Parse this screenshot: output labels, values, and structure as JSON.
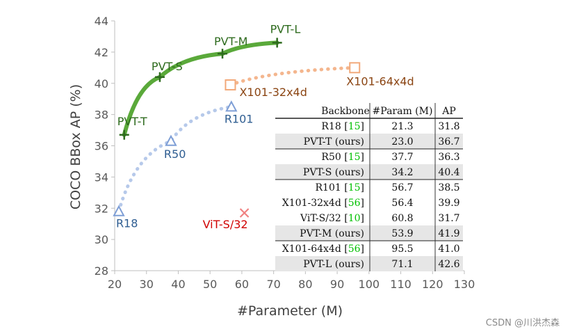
{
  "chart_data": {
    "type": "scatter",
    "xlabel": "#Parameter (M)",
    "ylabel": "COCO BBox AP (%)",
    "xlim": [
      20,
      130
    ],
    "ylim": [
      28,
      44
    ],
    "xticks": [
      "20",
      "30",
      "40",
      "50",
      "60",
      "70",
      "80",
      "90",
      "100",
      "110",
      "120",
      "130"
    ],
    "yticks": [
      "28",
      "30",
      "32",
      "34",
      "36",
      "38",
      "40",
      "42",
      "44"
    ],
    "grid": false,
    "series": [
      {
        "key": "pvt",
        "color": "#5aa93a",
        "line": "solid",
        "marker": "plus",
        "points": [
          {
            "label": "PVT-T",
            "x": 23.0,
            "y": 36.7
          },
          {
            "label": "PVT-S",
            "x": 34.2,
            "y": 40.4
          },
          {
            "label": "PVT-M",
            "x": 53.9,
            "y": 41.9
          },
          {
            "label": "PVT-L",
            "x": 71.1,
            "y": 42.6
          }
        ]
      },
      {
        "key": "resnet",
        "color": "#a9c0e6",
        "label_color": "#2e5d91",
        "line": "dotted",
        "marker": "triangle",
        "points": [
          {
            "label": "R18",
            "x": 21.3,
            "y": 31.8
          },
          {
            "label": "R50",
            "x": 37.7,
            "y": 36.3
          },
          {
            "label": "R101",
            "x": 56.7,
            "y": 38.5
          }
        ]
      },
      {
        "key": "resnext",
        "color": "#f2a97a",
        "label_color": "#8b4513",
        "line": "dotted",
        "marker": "square",
        "points": [
          {
            "label": "X101-32x4d",
            "x": 56.4,
            "y": 39.9
          },
          {
            "label": "X101-64x4d",
            "x": 95.5,
            "y": 41.0
          }
        ]
      },
      {
        "key": "vit",
        "color": "#f08080",
        "label_color": "#d00000",
        "line": "none",
        "marker": "x",
        "points": [
          {
            "label": "ViT-S/32",
            "x": 60.8,
            "y": 31.7
          }
        ]
      }
    ],
    "table": {
      "headers": [
        "Backbone",
        "#Param (M)",
        "AP"
      ],
      "groups": [
        [
          {
            "name": "R18",
            "ref": "15",
            "param": "21.3",
            "ap": "31.8",
            "shade": false
          },
          {
            "name": "PVT-T (ours)",
            "ref": "",
            "param": "23.0",
            "ap": "36.7",
            "shade": true
          }
        ],
        [
          {
            "name": "R50",
            "ref": "15",
            "param": "37.7",
            "ap": "36.3",
            "shade": false
          },
          {
            "name": "PVT-S (ours)",
            "ref": "",
            "param": "34.2",
            "ap": "40.4",
            "shade": true
          }
        ],
        [
          {
            "name": "R101",
            "ref": "15",
            "param": "56.7",
            "ap": "38.5",
            "shade": false
          },
          {
            "name": "X101-32x4d",
            "ref": "56",
            "param": "56.4",
            "ap": "39.9",
            "shade": false
          },
          {
            "name": "ViT-S/32",
            "ref": "10",
            "param": "60.8",
            "ap": "31.7",
            "shade": false
          },
          {
            "name": "PVT-M (ours)",
            "ref": "",
            "param": "53.9",
            "ap": "41.9",
            "shade": true
          }
        ],
        [
          {
            "name": "X101-64x4d",
            "ref": "56",
            "param": "95.5",
            "ap": "41.0",
            "shade": false
          },
          {
            "name": "PVT-L (ours)",
            "ref": "",
            "param": "71.1",
            "ap": "42.6",
            "shade": true
          }
        ]
      ]
    }
  },
  "watermark": "CSDN @川洪杰森"
}
